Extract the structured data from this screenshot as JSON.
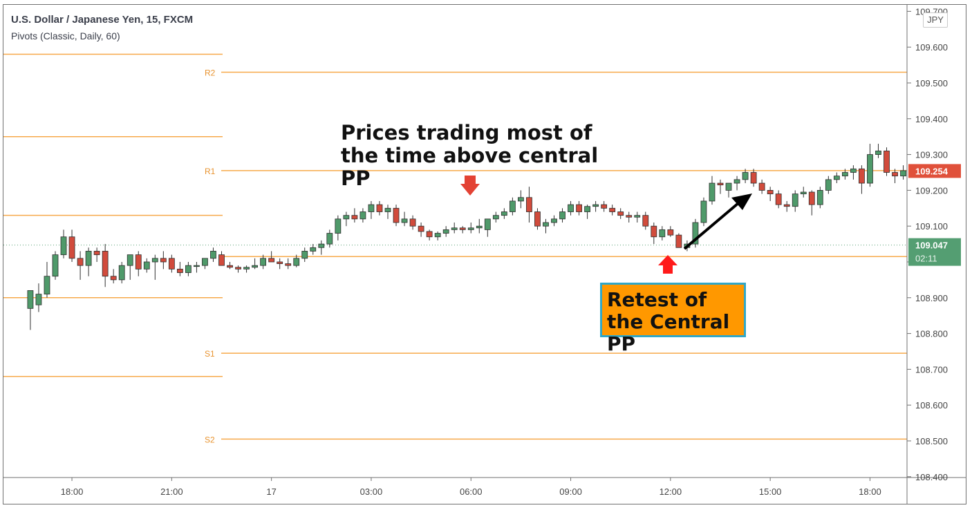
{
  "header": {
    "title": "U.S. Dollar / Japanese Yen, 15, FXCM",
    "indicator": "Pivots (Classic, Daily, 60)"
  },
  "price_axis": {
    "currency": "JPY",
    "last_price": "109.254",
    "current_price": "109.047",
    "countdown": "02:11"
  },
  "annotations": {
    "main_text": "Prices trading most of the time above central PP",
    "box_text": "Retest of the Central PP"
  },
  "colors": {
    "bull": "#4f9a6a",
    "bear": "#d14b3c",
    "pivot": "#f7a94a",
    "pivot_label": "#e8932f",
    "last_price_badge": "#e0503a",
    "current_price_badge": "#549e72"
  },
  "chart_data": {
    "type": "candlestick",
    "title": "U.S. Dollar / Japanese Yen, 15, FXCM",
    "y_range": [
      108.4,
      109.7
    ],
    "y_ticks": [
      108.4,
      108.5,
      108.6,
      108.7,
      108.8,
      108.9,
      109.0,
      109.1,
      109.2,
      109.3,
      109.4,
      109.5,
      109.6,
      109.7
    ],
    "x_ticks": [
      {
        "label": "18:00",
        "t": 0.5
      },
      {
        "label": "21:00",
        "t": 3.5
      },
      {
        "label": "17",
        "t": 6.5
      },
      {
        "label": "03:00",
        "t": 9.5
      },
      {
        "label": "06:00",
        "t": 12.5
      },
      {
        "label": "09:00",
        "t": 15.5
      },
      {
        "label": "12:00",
        "t": 18.5
      },
      {
        "label": "15:00",
        "t": 21.5
      },
      {
        "label": "18:00",
        "t": 24.5
      }
    ],
    "pivots_previous_day": [
      109.58,
      109.35,
      109.13,
      108.9,
      108.68
    ],
    "pivots_current_day": [
      {
        "label": "R2",
        "value": 109.53
      },
      {
        "label": "R1",
        "value": 109.255
      },
      {
        "label": "",
        "value": 109.015
      },
      {
        "label": "S1",
        "value": 108.745
      },
      {
        "label": "S2",
        "value": 108.505
      }
    ],
    "current_price": 109.047,
    "last_price": 109.254,
    "candles": [
      {
        "t": -0.75,
        "o": 108.87,
        "h": 108.91,
        "l": 108.81,
        "c": 108.92
      },
      {
        "t": -0.5,
        "o": 108.88,
        "h": 108.94,
        "l": 108.86,
        "c": 108.91
      },
      {
        "t": -0.25,
        "o": 108.91,
        "h": 109.0,
        "l": 108.9,
        "c": 108.96
      },
      {
        "t": 0.0,
        "o": 108.96,
        "h": 109.03,
        "l": 108.95,
        "c": 109.02
      },
      {
        "t": 0.25,
        "o": 109.02,
        "h": 109.09,
        "l": 109.01,
        "c": 109.07
      },
      {
        "t": 0.5,
        "o": 109.07,
        "h": 109.09,
        "l": 109.0,
        "c": 109.01
      },
      {
        "t": 0.75,
        "o": 109.01,
        "h": 109.03,
        "l": 108.95,
        "c": 108.99
      },
      {
        "t": 1.0,
        "o": 108.99,
        "h": 109.04,
        "l": 108.96,
        "c": 109.03
      },
      {
        "t": 1.25,
        "o": 109.03,
        "h": 109.04,
        "l": 109.0,
        "c": 109.02
      },
      {
        "t": 1.5,
        "o": 109.03,
        "h": 109.05,
        "l": 108.93,
        "c": 108.96
      },
      {
        "t": 1.75,
        "o": 108.96,
        "h": 108.98,
        "l": 108.94,
        "c": 108.95
      },
      {
        "t": 2.0,
        "o": 108.95,
        "h": 109.0,
        "l": 108.94,
        "c": 108.99
      },
      {
        "t": 2.25,
        "o": 108.99,
        "h": 109.01,
        "l": 108.95,
        "c": 109.02
      },
      {
        "t": 2.5,
        "o": 109.02,
        "h": 109.03,
        "l": 108.96,
        "c": 108.98
      },
      {
        "t": 2.75,
        "o": 108.98,
        "h": 109.01,
        "l": 108.97,
        "c": 109.0
      },
      {
        "t": 3.0,
        "o": 109.0,
        "h": 109.02,
        "l": 108.95,
        "c": 109.01
      },
      {
        "t": 3.25,
        "o": 109.01,
        "h": 109.03,
        "l": 108.98,
        "c": 109.0
      },
      {
        "t": 3.5,
        "o": 109.01,
        "h": 109.02,
        "l": 108.97,
        "c": 108.98
      },
      {
        "t": 3.75,
        "o": 108.98,
        "h": 109.0,
        "l": 108.96,
        "c": 108.97
      },
      {
        "t": 4.0,
        "o": 108.97,
        "h": 109.0,
        "l": 108.96,
        "c": 108.99
      },
      {
        "t": 4.25,
        "o": 108.99,
        "h": 109.0,
        "l": 108.97,
        "c": 108.99
      },
      {
        "t": 4.5,
        "o": 108.99,
        "h": 109.01,
        "l": 108.98,
        "c": 109.01
      },
      {
        "t": 4.75,
        "o": 109.01,
        "h": 109.04,
        "l": 109.0,
        "c": 109.03
      },
      {
        "t": 5.0,
        "o": 109.02,
        "h": 109.03,
        "l": 108.99,
        "c": 108.99
      },
      {
        "t": 5.25,
        "o": 108.99,
        "h": 109.0,
        "l": 108.98,
        "c": 108.985
      },
      {
        "t": 5.5,
        "o": 108.985,
        "h": 108.99,
        "l": 108.97,
        "c": 108.98
      },
      {
        "t": 5.75,
        "o": 108.98,
        "h": 108.99,
        "l": 108.97,
        "c": 108.985
      },
      {
        "t": 6.0,
        "o": 108.985,
        "h": 109.01,
        "l": 108.98,
        "c": 108.99
      },
      {
        "t": 6.25,
        "o": 108.99,
        "h": 109.02,
        "l": 108.98,
        "c": 109.01
      },
      {
        "t": 6.5,
        "o": 109.01,
        "h": 109.03,
        "l": 109.0,
        "c": 109.0
      },
      {
        "t": 6.75,
        "o": 109.0,
        "h": 109.01,
        "l": 108.98,
        "c": 108.995
      },
      {
        "t": 7.0,
        "o": 108.995,
        "h": 109.01,
        "l": 108.98,
        "c": 108.99
      },
      {
        "t": 7.25,
        "o": 108.99,
        "h": 109.02,
        "l": 108.985,
        "c": 109.01
      },
      {
        "t": 7.5,
        "o": 109.01,
        "h": 109.04,
        "l": 109.0,
        "c": 109.03
      },
      {
        "t": 7.75,
        "o": 109.03,
        "h": 109.05,
        "l": 109.02,
        "c": 109.04
      },
      {
        "t": 8.0,
        "o": 109.04,
        "h": 109.06,
        "l": 109.02,
        "c": 109.05
      },
      {
        "t": 8.25,
        "o": 109.05,
        "h": 109.09,
        "l": 109.04,
        "c": 109.08
      },
      {
        "t": 8.5,
        "o": 109.08,
        "h": 109.13,
        "l": 109.06,
        "c": 109.12
      },
      {
        "t": 8.75,
        "o": 109.12,
        "h": 109.14,
        "l": 109.1,
        "c": 109.13
      },
      {
        "t": 9.0,
        "o": 109.13,
        "h": 109.15,
        "l": 109.11,
        "c": 109.12
      },
      {
        "t": 9.25,
        "o": 109.12,
        "h": 109.15,
        "l": 109.11,
        "c": 109.14
      },
      {
        "t": 9.5,
        "o": 109.14,
        "h": 109.17,
        "l": 109.12,
        "c": 109.16
      },
      {
        "t": 9.75,
        "o": 109.16,
        "h": 109.17,
        "l": 109.13,
        "c": 109.14
      },
      {
        "t": 10.0,
        "o": 109.14,
        "h": 109.16,
        "l": 109.12,
        "c": 109.15
      },
      {
        "t": 10.25,
        "o": 109.15,
        "h": 109.16,
        "l": 109.1,
        "c": 109.11
      },
      {
        "t": 10.5,
        "o": 109.11,
        "h": 109.14,
        "l": 109.1,
        "c": 109.12
      },
      {
        "t": 10.75,
        "o": 109.12,
        "h": 109.13,
        "l": 109.09,
        "c": 109.1
      },
      {
        "t": 11.0,
        "o": 109.1,
        "h": 109.11,
        "l": 109.07,
        "c": 109.085
      },
      {
        "t": 11.25,
        "o": 109.085,
        "h": 109.09,
        "l": 109.06,
        "c": 109.07
      },
      {
        "t": 11.5,
        "o": 109.07,
        "h": 109.085,
        "l": 109.06,
        "c": 109.08
      },
      {
        "t": 11.75,
        "o": 109.08,
        "h": 109.1,
        "l": 109.07,
        "c": 109.09
      },
      {
        "t": 12.0,
        "o": 109.09,
        "h": 109.11,
        "l": 109.08,
        "c": 109.095
      },
      {
        "t": 12.25,
        "o": 109.095,
        "h": 109.1,
        "l": 109.08,
        "c": 109.09
      },
      {
        "t": 12.5,
        "o": 109.09,
        "h": 109.11,
        "l": 109.08,
        "c": 109.095
      },
      {
        "t": 12.75,
        "o": 109.095,
        "h": 109.12,
        "l": 109.08,
        "c": 109.1
      },
      {
        "t": 13.0,
        "o": 109.09,
        "h": 109.11,
        "l": 109.07,
        "c": 109.12
      },
      {
        "t": 13.25,
        "o": 109.12,
        "h": 109.14,
        "l": 109.11,
        "c": 109.13
      },
      {
        "t": 13.5,
        "o": 109.13,
        "h": 109.15,
        "l": 109.12,
        "c": 109.14
      },
      {
        "t": 13.75,
        "o": 109.14,
        "h": 109.18,
        "l": 109.13,
        "c": 109.17
      },
      {
        "t": 14.0,
        "o": 109.17,
        "h": 109.2,
        "l": 109.15,
        "c": 109.18
      },
      {
        "t": 14.25,
        "o": 109.18,
        "h": 109.21,
        "l": 109.11,
        "c": 109.14
      },
      {
        "t": 14.5,
        "o": 109.14,
        "h": 109.15,
        "l": 109.09,
        "c": 109.1
      },
      {
        "t": 14.75,
        "o": 109.1,
        "h": 109.12,
        "l": 109.08,
        "c": 109.11
      },
      {
        "t": 15.0,
        "o": 109.11,
        "h": 109.13,
        "l": 109.1,
        "c": 109.12
      },
      {
        "t": 15.25,
        "o": 109.12,
        "h": 109.15,
        "l": 109.11,
        "c": 109.14
      },
      {
        "t": 15.5,
        "o": 109.14,
        "h": 109.17,
        "l": 109.13,
        "c": 109.16
      },
      {
        "t": 15.75,
        "o": 109.16,
        "h": 109.17,
        "l": 109.13,
        "c": 109.14
      },
      {
        "t": 16.0,
        "o": 109.14,
        "h": 109.16,
        "l": 109.12,
        "c": 109.155
      },
      {
        "t": 16.25,
        "o": 109.155,
        "h": 109.17,
        "l": 109.14,
        "c": 109.16
      },
      {
        "t": 16.5,
        "o": 109.16,
        "h": 109.17,
        "l": 109.14,
        "c": 109.15
      },
      {
        "t": 16.75,
        "o": 109.15,
        "h": 109.16,
        "l": 109.13,
        "c": 109.14
      },
      {
        "t": 17.0,
        "o": 109.14,
        "h": 109.15,
        "l": 109.12,
        "c": 109.13
      },
      {
        "t": 17.25,
        "o": 109.13,
        "h": 109.14,
        "l": 109.11,
        "c": 109.125
      },
      {
        "t": 17.5,
        "o": 109.125,
        "h": 109.14,
        "l": 109.11,
        "c": 109.13
      },
      {
        "t": 17.75,
        "o": 109.13,
        "h": 109.14,
        "l": 109.09,
        "c": 109.1
      },
      {
        "t": 18.0,
        "o": 109.1,
        "h": 109.11,
        "l": 109.05,
        "c": 109.07
      },
      {
        "t": 18.25,
        "o": 109.07,
        "h": 109.1,
        "l": 109.06,
        "c": 109.09
      },
      {
        "t": 18.5,
        "o": 109.09,
        "h": 109.1,
        "l": 109.07,
        "c": 109.075
      },
      {
        "t": 18.75,
        "o": 109.075,
        "h": 109.08,
        "l": 109.04,
        "c": 109.04
      },
      {
        "t": 19.0,
        "o": 109.04,
        "h": 109.06,
        "l": 109.03,
        "c": 109.05
      },
      {
        "t": 19.25,
        "o": 109.05,
        "h": 109.12,
        "l": 109.04,
        "c": 109.11
      },
      {
        "t": 19.5,
        "o": 109.11,
        "h": 109.18,
        "l": 109.1,
        "c": 109.17
      },
      {
        "t": 19.75,
        "o": 109.17,
        "h": 109.24,
        "l": 109.16,
        "c": 109.22
      },
      {
        "t": 20.0,
        "o": 109.22,
        "h": 109.23,
        "l": 109.19,
        "c": 109.215
      },
      {
        "t": 20.25,
        "o": 109.2,
        "h": 109.22,
        "l": 109.18,
        "c": 109.22
      },
      {
        "t": 20.5,
        "o": 109.22,
        "h": 109.24,
        "l": 109.2,
        "c": 109.23
      },
      {
        "t": 20.75,
        "o": 109.23,
        "h": 109.26,
        "l": 109.22,
        "c": 109.25
      },
      {
        "t": 21.0,
        "o": 109.25,
        "h": 109.26,
        "l": 109.21,
        "c": 109.22
      },
      {
        "t": 21.25,
        "o": 109.22,
        "h": 109.23,
        "l": 109.19,
        "c": 109.2
      },
      {
        "t": 21.5,
        "o": 109.2,
        "h": 109.21,
        "l": 109.17,
        "c": 109.19
      },
      {
        "t": 21.75,
        "o": 109.19,
        "h": 109.2,
        "l": 109.15,
        "c": 109.16
      },
      {
        "t": 22.0,
        "o": 109.16,
        "h": 109.17,
        "l": 109.14,
        "c": 109.155
      },
      {
        "t": 22.25,
        "o": 109.155,
        "h": 109.2,
        "l": 109.14,
        "c": 109.19
      },
      {
        "t": 22.5,
        "o": 109.19,
        "h": 109.21,
        "l": 109.18,
        "c": 109.195
      },
      {
        "t": 22.75,
        "o": 109.195,
        "h": 109.2,
        "l": 109.13,
        "c": 109.16
      },
      {
        "t": 23.0,
        "o": 109.16,
        "h": 109.21,
        "l": 109.15,
        "c": 109.2
      },
      {
        "t": 23.25,
        "o": 109.2,
        "h": 109.24,
        "l": 109.19,
        "c": 109.23
      },
      {
        "t": 23.5,
        "o": 109.23,
        "h": 109.25,
        "l": 109.22,
        "c": 109.24
      },
      {
        "t": 23.75,
        "o": 109.24,
        "h": 109.26,
        "l": 109.23,
        "c": 109.25
      },
      {
        "t": 24.0,
        "o": 109.25,
        "h": 109.27,
        "l": 109.23,
        "c": 109.26
      },
      {
        "t": 24.25,
        "o": 109.26,
        "h": 109.27,
        "l": 109.19,
        "c": 109.22
      },
      {
        "t": 24.5,
        "o": 109.22,
        "h": 109.33,
        "l": 109.21,
        "c": 109.3
      },
      {
        "t": 24.75,
        "o": 109.3,
        "h": 109.33,
        "l": 109.29,
        "c": 109.31
      },
      {
        "t": 25.0,
        "o": 109.31,
        "h": 109.32,
        "l": 109.24,
        "c": 109.25
      },
      {
        "t": 25.25,
        "o": 109.25,
        "h": 109.26,
        "l": 109.22,
        "c": 109.24
      },
      {
        "t": 25.5,
        "o": 109.24,
        "h": 109.27,
        "l": 109.23,
        "c": 109.255
      },
      {
        "t": 25.75,
        "o": 109.255,
        "h": 109.28,
        "l": 109.24,
        "c": 109.265
      },
      {
        "t": 26.0,
        "o": 109.265,
        "h": 109.28,
        "l": 109.25,
        "c": 109.27
      },
      {
        "t": 26.25,
        "o": 109.27,
        "h": 109.28,
        "l": 109.25,
        "c": 109.254
      }
    ]
  }
}
